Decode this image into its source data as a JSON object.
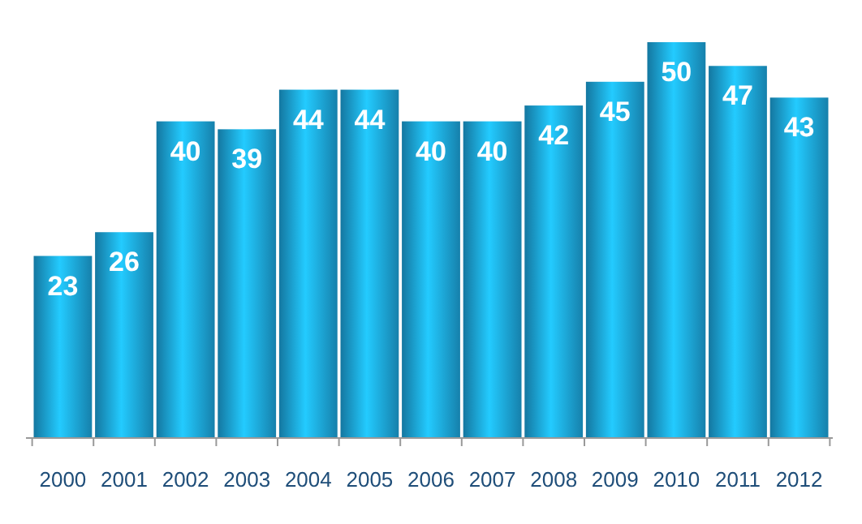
{
  "chart_data": {
    "type": "bar",
    "categories": [
      "2000",
      "2001",
      "2002",
      "2003",
      "2004",
      "2005",
      "2006",
      "2007",
      "2008",
      "2009",
      "2010",
      "2011",
      "2012"
    ],
    "values": [
      23,
      26,
      40,
      39,
      44,
      44,
      40,
      40,
      42,
      45,
      50,
      47,
      43
    ],
    "color": "#1ca4dc",
    "data_labels": true
  }
}
